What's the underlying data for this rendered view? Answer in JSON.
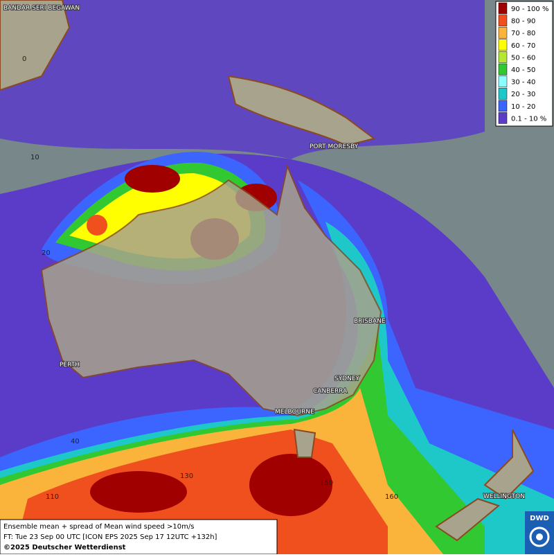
{
  "legend": {
    "items": [
      {
        "label": "90 - 100 %",
        "color": "#a00000"
      },
      {
        "label": "80 - 90",
        "color": "#f0501e"
      },
      {
        "label": "70 - 80",
        "color": "#fab43c"
      },
      {
        "label": "60 - 70",
        "color": "#ffff00"
      },
      {
        "label": "50 - 60",
        "color": "#b4e632"
      },
      {
        "label": "40 - 50",
        "color": "#32c832"
      },
      {
        "label": "30 - 40",
        "color": "#8cffff"
      },
      {
        "label": "20 - 30",
        "color": "#1ec8c8"
      },
      {
        "label": "10 - 20",
        "color": "#3c64ff"
      },
      {
        "label": "0.1 - 10 %",
        "color": "#5a3cc8"
      }
    ]
  },
  "cities": [
    "BANDAR SERI BEGAWAN",
    "PORT MORESBY",
    "BRISBANE",
    "SYDNEY",
    "CANBERRA",
    "MELBOURNE",
    "PERTH",
    "WELLINGTON"
  ],
  "grid_labels": [
    "0",
    "10",
    "20",
    "40",
    "110",
    "130",
    "150",
    "160"
  ],
  "footer": {
    "lines": [
      "Ensemble mean + spread of Mean wind speed >10m/s",
      "FT: Tue 23 Sep 00 UTC [ICON EPS 2025 Sep 17 12UTC +132h]",
      "©2025 Deutscher Wetterdienst"
    ]
  },
  "logo": "DWD"
}
